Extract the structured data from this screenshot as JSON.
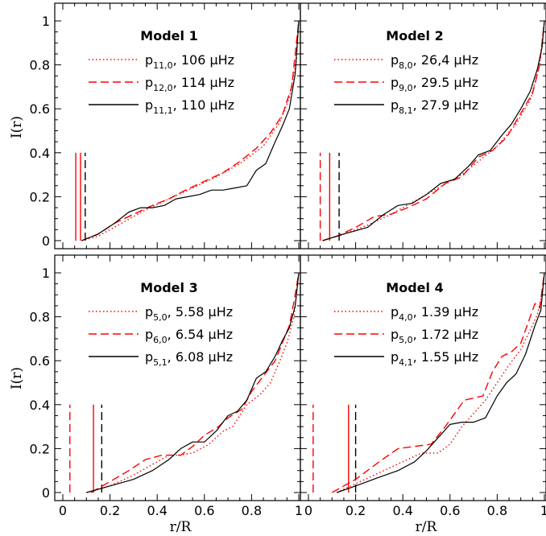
{
  "figure": {
    "ylabel": "I(r)",
    "xlabel": "r/R"
  },
  "chart_data": [
    {
      "type": "line",
      "title": "Model 1",
      "xlim": [
        0,
        1
      ],
      "ylim": [
        0,
        1
      ],
      "xticks": [
        "0",
        "0.2",
        "0.4",
        "0.6",
        "0.8",
        "1"
      ],
      "yticks": [
        "0",
        "0.2",
        "0.4",
        "0.6",
        "0.8",
        "1"
      ],
      "legend": [
        {
          "mode": "p",
          "sub": "11,0",
          "freq": "106",
          "unit": "μHz",
          "style": "dotted",
          "color": "#ff0000"
        },
        {
          "mode": "p",
          "sub": "12,0",
          "freq": "114",
          "unit": "μHz",
          "style": "dashed",
          "color": "#ff0000"
        },
        {
          "mode": "p",
          "sub": "11,1",
          "freq": "110",
          "unit": "μHz",
          "style": "solid",
          "color": "#000000"
        }
      ],
      "vlines": [
        {
          "x": 0.055,
          "style": "solid",
          "color": "#ff0000"
        },
        {
          "x": 0.075,
          "style": "solid",
          "color": "#ff0000"
        },
        {
          "x": 0.095,
          "style": "dashed",
          "color": "#000000"
        }
      ],
      "series": [
        {
          "style": "dotted",
          "color": "#ff0000",
          "x": [
            0.08,
            0.15,
            0.25,
            0.35,
            0.45,
            0.55,
            0.65,
            0.75,
            0.85,
            0.92,
            0.96,
            0.99,
            1.0
          ],
          "y": [
            0,
            0.02,
            0.08,
            0.14,
            0.19,
            0.24,
            0.29,
            0.35,
            0.43,
            0.54,
            0.65,
            0.82,
            1.0
          ]
        },
        {
          "style": "dashed",
          "color": "#ff0000",
          "x": [
            0.08,
            0.15,
            0.22,
            0.3,
            0.38,
            0.45,
            0.52,
            0.6,
            0.68,
            0.75,
            0.82,
            0.88,
            0.93,
            0.97,
            1.0
          ],
          "y": [
            0,
            0.03,
            0.08,
            0.12,
            0.16,
            0.19,
            0.23,
            0.27,
            0.31,
            0.36,
            0.42,
            0.49,
            0.57,
            0.7,
            1.0
          ]
        },
        {
          "style": "solid",
          "color": "#000000",
          "x": [
            0.08,
            0.15,
            0.22,
            0.28,
            0.33,
            0.38,
            0.43,
            0.48,
            0.53,
            0.58,
            0.63,
            0.68,
            0.73,
            0.78,
            0.82,
            0.86,
            0.9,
            0.93,
            0.96,
            0.985,
            1.0
          ],
          "y": [
            0,
            0.03,
            0.08,
            0.13,
            0.15,
            0.15,
            0.16,
            0.19,
            0.2,
            0.21,
            0.23,
            0.23,
            0.24,
            0.25,
            0.32,
            0.35,
            0.45,
            0.52,
            0.6,
            0.76,
            1.0
          ]
        }
      ]
    },
    {
      "type": "line",
      "title": "Model 2",
      "xlim": [
        0,
        1
      ],
      "ylim": [
        0,
        1
      ],
      "xticks": [
        "0",
        "0.2",
        "0.4",
        "0.6",
        "0.8",
        "1"
      ],
      "yticks": [
        "0",
        "0.2",
        "0.4",
        "0.6",
        "0.8",
        "1"
      ],
      "legend": [
        {
          "mode": "p",
          "sub": "8,0",
          "freq": "26,4",
          "unit": "μHz",
          "style": "dotted",
          "color": "#ff0000"
        },
        {
          "mode": "p",
          "sub": "9,0",
          "freq": "29.5",
          "unit": "μHz",
          "style": "dashed",
          "color": "#ff0000"
        },
        {
          "mode": "p",
          "sub": "8,1",
          "freq": "27.9",
          "unit": "μHz",
          "style": "solid",
          "color": "#000000"
        }
      ],
      "vlines": [
        {
          "x": 0.05,
          "style": "dashed",
          "color": "#ff0000"
        },
        {
          "x": 0.09,
          "style": "solid",
          "color": "#ff0000"
        },
        {
          "x": 0.13,
          "style": "dashed",
          "color": "#000000"
        }
      ],
      "series": [
        {
          "style": "dotted",
          "color": "#ff0000",
          "x": [
            0.06,
            0.15,
            0.25,
            0.35,
            0.45,
            0.55,
            0.65,
            0.72,
            0.8,
            0.88,
            0.94,
            0.98,
            1.0
          ],
          "y": [
            0,
            0.03,
            0.07,
            0.12,
            0.18,
            0.24,
            0.3,
            0.36,
            0.43,
            0.53,
            0.64,
            0.8,
            1.0
          ]
        },
        {
          "style": "dashed",
          "color": "#ff0000",
          "x": [
            0.06,
            0.12,
            0.2,
            0.28,
            0.35,
            0.42,
            0.5,
            0.58,
            0.65,
            0.72,
            0.78,
            0.84,
            0.9,
            0.95,
            0.98,
            1.0
          ],
          "y": [
            0,
            0.02,
            0.06,
            0.11,
            0.12,
            0.15,
            0.19,
            0.26,
            0.29,
            0.38,
            0.41,
            0.47,
            0.58,
            0.67,
            0.8,
            1.0
          ]
        },
        {
          "style": "solid",
          "color": "#000000",
          "x": [
            0.06,
            0.15,
            0.25,
            0.32,
            0.38,
            0.44,
            0.5,
            0.56,
            0.62,
            0.68,
            0.72,
            0.77,
            0.82,
            0.86,
            0.9,
            0.94,
            0.97,
            0.99,
            1.0
          ],
          "y": [
            0,
            0.03,
            0.06,
            0.12,
            0.16,
            0.17,
            0.21,
            0.26,
            0.28,
            0.34,
            0.39,
            0.41,
            0.48,
            0.53,
            0.6,
            0.68,
            0.78,
            0.88,
            1.0
          ]
        }
      ]
    },
    {
      "type": "line",
      "title": "Model 3",
      "xlim": [
        0,
        1
      ],
      "ylim": [
        0,
        1
      ],
      "xticks": [
        "0",
        "0.2",
        "0.4",
        "0.6",
        "0.8",
        "1"
      ],
      "yticks": [
        "0",
        "0.2",
        "0.4",
        "0.6",
        "0.8",
        "1"
      ],
      "legend": [
        {
          "mode": "p",
          "sub": "5,0",
          "freq": "5.58",
          "unit": "μHz",
          "style": "dotted",
          "color": "#ff0000"
        },
        {
          "mode": "p",
          "sub": "6,0",
          "freq": "6.54",
          "unit": "μHz",
          "style": "dashed",
          "color": "#ff0000"
        },
        {
          "mode": "p",
          "sub": "5,1",
          "freq": "6.08",
          "unit": "μHz",
          "style": "solid",
          "color": "#000000"
        }
      ],
      "vlines": [
        {
          "x": 0.03,
          "style": "dashed",
          "color": "#ff0000"
        },
        {
          "x": 0.13,
          "style": "solid",
          "color": "#ff0000"
        },
        {
          "x": 0.165,
          "style": "dashed",
          "color": "#000000"
        }
      ],
      "series": [
        {
          "style": "dotted",
          "color": "#ff0000",
          "x": [
            0.1,
            0.2,
            0.3,
            0.4,
            0.45,
            0.5,
            0.55,
            0.62,
            0.68,
            0.72,
            0.78,
            0.84,
            0.88,
            0.92,
            0.95,
            0.98,
            1.0
          ],
          "y": [
            0,
            0.03,
            0.08,
            0.14,
            0.17,
            0.17,
            0.18,
            0.22,
            0.28,
            0.3,
            0.4,
            0.45,
            0.5,
            0.6,
            0.68,
            0.8,
            1.0
          ]
        },
        {
          "style": "dashed",
          "color": "#ff0000",
          "x": [
            0.12,
            0.2,
            0.28,
            0.35,
            0.42,
            0.5,
            0.55,
            0.6,
            0.66,
            0.7,
            0.76,
            0.8,
            0.85,
            0.9,
            0.93,
            0.96,
            0.98,
            1.0
          ],
          "y": [
            0,
            0.05,
            0.1,
            0.15,
            0.17,
            0.17,
            0.21,
            0.26,
            0.3,
            0.34,
            0.38,
            0.46,
            0.53,
            0.6,
            0.68,
            0.76,
            0.87,
            1.0
          ]
        },
        {
          "style": "solid",
          "color": "#000000",
          "x": [
            0.1,
            0.2,
            0.3,
            0.38,
            0.45,
            0.5,
            0.55,
            0.6,
            0.65,
            0.7,
            0.74,
            0.78,
            0.82,
            0.86,
            0.9,
            0.93,
            0.96,
            0.985,
            1.0
          ],
          "y": [
            0,
            0.03,
            0.06,
            0.1,
            0.15,
            0.2,
            0.23,
            0.23,
            0.28,
            0.35,
            0.37,
            0.42,
            0.52,
            0.55,
            0.62,
            0.69,
            0.75,
            0.85,
            1.0
          ]
        }
      ]
    },
    {
      "type": "line",
      "title": "Model 4",
      "xlim": [
        0,
        1
      ],
      "ylim": [
        0,
        1
      ],
      "xticks": [
        "0",
        "0.2",
        "0.4",
        "0.6",
        "0.8",
        "1"
      ],
      "yticks": [
        "0",
        "0.2",
        "0.4",
        "0.6",
        "0.8",
        "1"
      ],
      "legend": [
        {
          "mode": "p",
          "sub": "4,0",
          "freq": "1.39",
          "unit": "μHz",
          "style": "dotted",
          "color": "#ff0000"
        },
        {
          "mode": "p",
          "sub": "5,0",
          "freq": "1.72",
          "unit": "μHz",
          "style": "dashed",
          "color": "#ff0000"
        },
        {
          "mode": "p",
          "sub": "4,1",
          "freq": "1.55",
          "unit": "μHz",
          "style": "solid",
          "color": "#000000"
        }
      ],
      "vlines": [
        {
          "x": 0.02,
          "style": "dashed",
          "color": "#ff0000"
        },
        {
          "x": 0.17,
          "style": "solid",
          "color": "#ff0000"
        },
        {
          "x": 0.2,
          "style": "dashed",
          "color": "#000000"
        }
      ],
      "series": [
        {
          "style": "dotted",
          "color": "#ff0000",
          "x": [
            0.12,
            0.2,
            0.3,
            0.4,
            0.48,
            0.55,
            0.6,
            0.65,
            0.7,
            0.75,
            0.8,
            0.85,
            0.9,
            0.94,
            0.97,
            0.99,
            1.0
          ],
          "y": [
            0,
            0.04,
            0.09,
            0.14,
            0.18,
            0.18,
            0.22,
            0.3,
            0.36,
            0.42,
            0.5,
            0.58,
            0.65,
            0.74,
            0.81,
            0.9,
            1.0
          ]
        },
        {
          "style": "dashed",
          "color": "#ff0000",
          "x": [
            0.1,
            0.2,
            0.3,
            0.38,
            0.45,
            0.52,
            0.58,
            0.62,
            0.66,
            0.7,
            0.74,
            0.78,
            0.82,
            0.86,
            0.9,
            0.93,
            0.96,
            0.98,
            1.0
          ],
          "y": [
            0,
            0.06,
            0.14,
            0.2,
            0.21,
            0.22,
            0.3,
            0.36,
            0.42,
            0.43,
            0.44,
            0.55,
            0.62,
            0.64,
            0.68,
            0.77,
            0.86,
            0.84,
            1.0
          ]
        },
        {
          "style": "solid",
          "color": "#000000",
          "x": [
            0.12,
            0.2,
            0.3,
            0.38,
            0.45,
            0.5,
            0.55,
            0.6,
            0.65,
            0.7,
            0.75,
            0.8,
            0.84,
            0.88,
            0.92,
            0.96,
            0.985,
            1.0
          ],
          "y": [
            0,
            0.03,
            0.07,
            0.1,
            0.14,
            0.19,
            0.25,
            0.31,
            0.32,
            0.32,
            0.34,
            0.44,
            0.5,
            0.54,
            0.63,
            0.76,
            0.83,
            1.0
          ]
        }
      ]
    }
  ]
}
